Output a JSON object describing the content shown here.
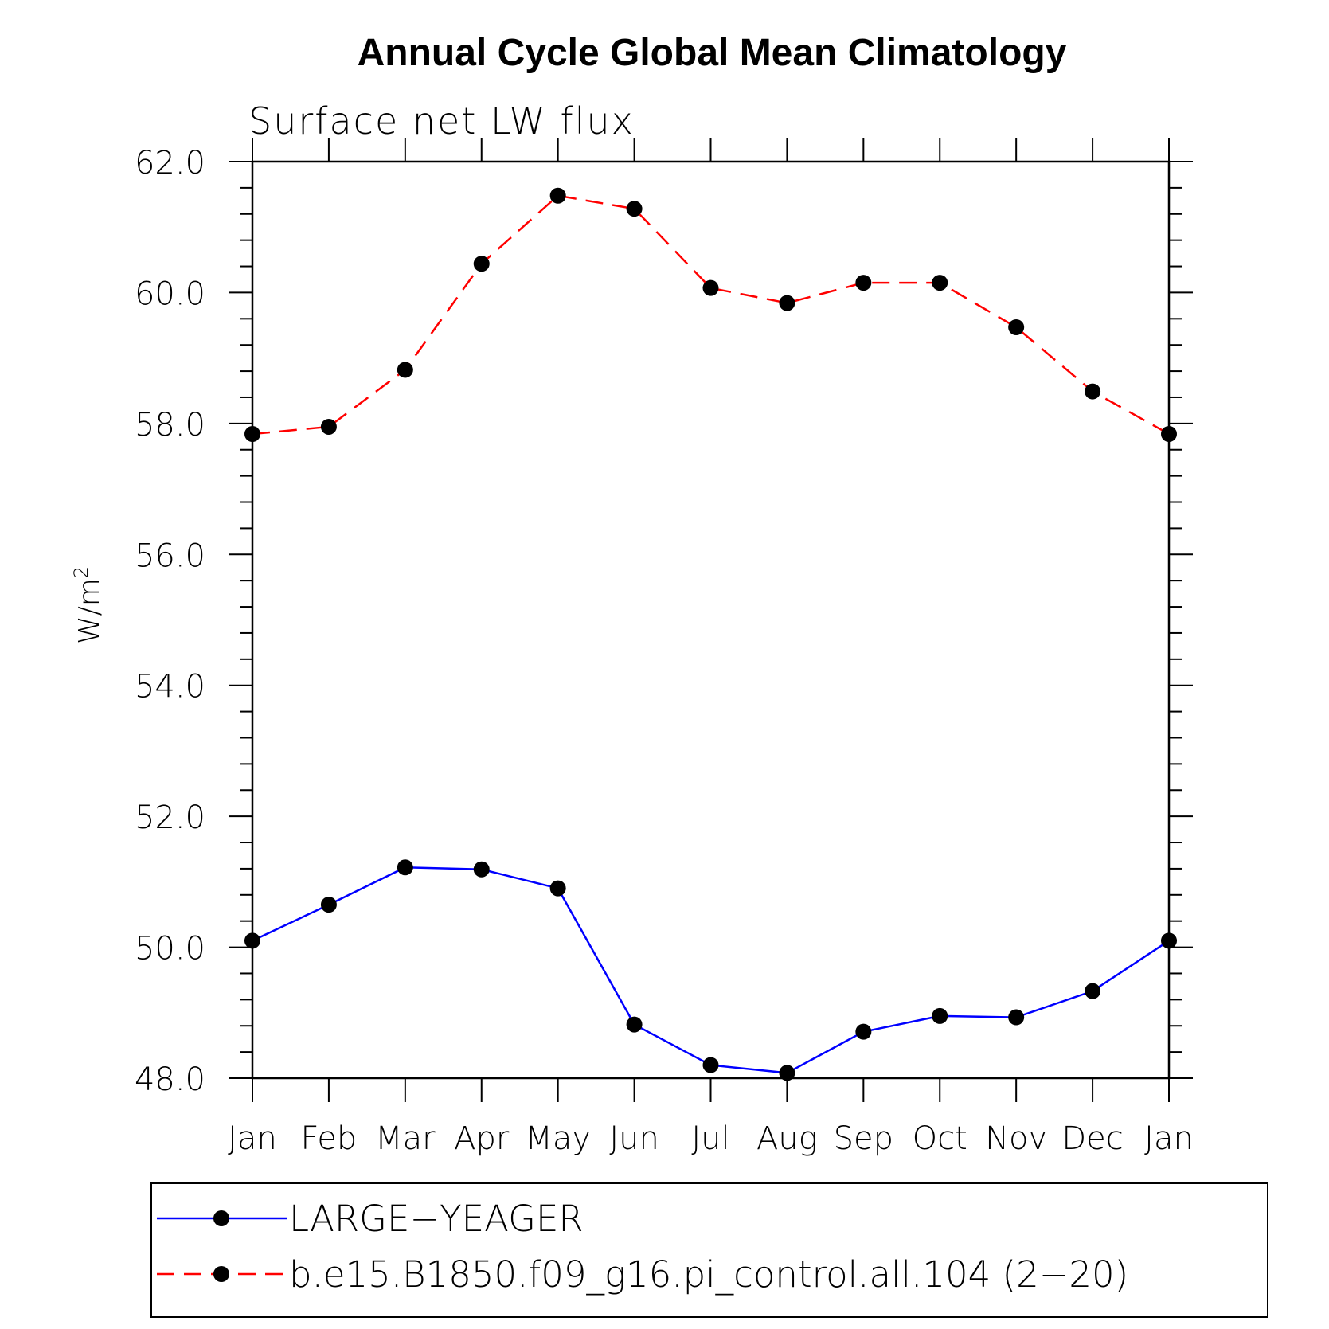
{
  "chart_data": {
    "type": "line",
    "title": "Annual Cycle Global Mean Climatology",
    "subtitle": "Surface net LW flux",
    "ylabel": "W/m",
    "ylabel_sup": "2",
    "xlabel": "",
    "categories": [
      "Jan",
      "Feb",
      "Mar",
      "Apr",
      "May",
      "Jun",
      "Jul",
      "Aug",
      "Sep",
      "Oct",
      "Nov",
      "Dec",
      "Jan"
    ],
    "ylim": [
      48.0,
      62.0
    ],
    "yticks": [
      "48.0",
      "50.0",
      "52.0",
      "54.0",
      "56.0",
      "58.0",
      "60.0",
      "62.0"
    ],
    "grid": false,
    "legend_position": "bottom",
    "series": [
      {
        "name": "LARGE−YEAGER",
        "color": "#0000ff",
        "style": "solid",
        "values": [
          50.1,
          50.65,
          51.22,
          51.19,
          50.9,
          48.82,
          48.2,
          48.08,
          48.71,
          48.95,
          48.93,
          49.33,
          50.1
        ]
      },
      {
        "name": "b.e15.B1850.f09_g16.pi_control.all.104 (2−20)",
        "color": "#ff0000",
        "style": "dashed",
        "values": [
          57.84,
          57.95,
          58.82,
          60.44,
          61.48,
          61.28,
          60.07,
          59.84,
          60.15,
          60.15,
          59.47,
          58.49,
          57.84
        ]
      }
    ]
  }
}
